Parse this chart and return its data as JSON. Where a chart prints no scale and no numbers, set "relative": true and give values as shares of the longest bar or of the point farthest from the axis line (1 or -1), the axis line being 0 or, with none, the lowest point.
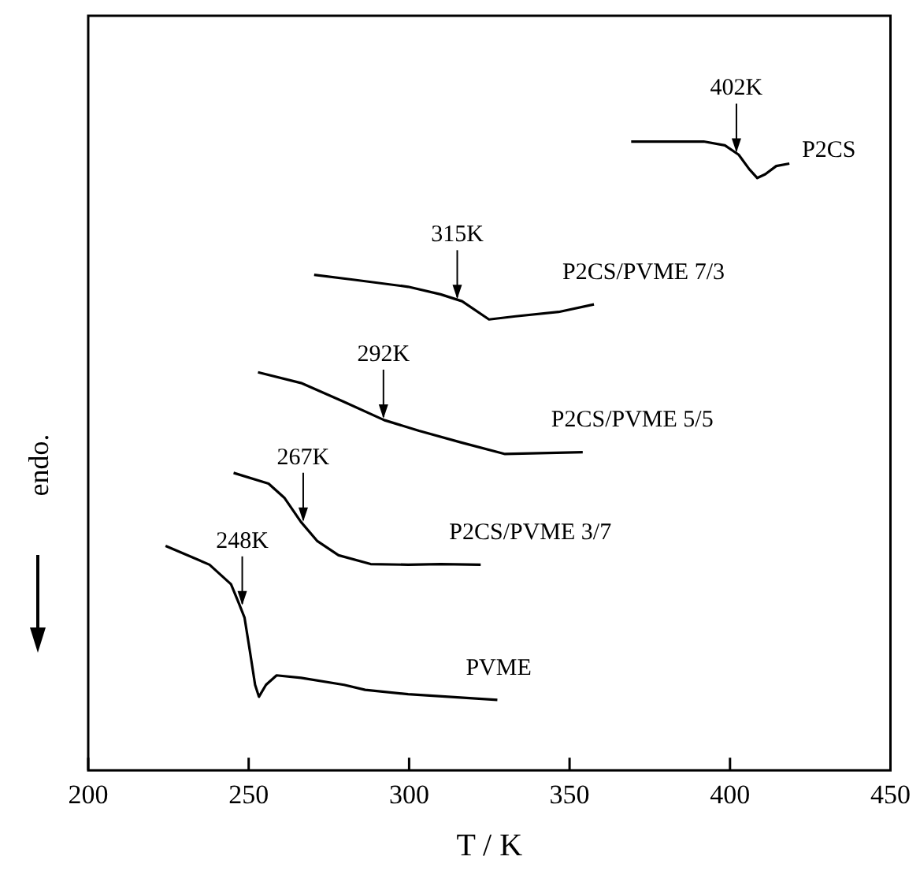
{
  "chart_data": {
    "type": "line",
    "relative": true,
    "xlabel": "T / K",
    "ylabel": "endo.",
    "xlim": [
      200,
      450
    ],
    "xticks": [
      200,
      250,
      300,
      350,
      400,
      450
    ],
    "grid": false,
    "legend": false,
    "series": [
      {
        "name": "P2CS",
        "color": "#000000",
        "x": [
          369.2,
          391.8,
          398.4,
          402.7,
          406.0,
          408.5,
          411.0,
          414.4,
          418.5
        ],
        "values": [
          1.0,
          1.0,
          0.994,
          0.979,
          0.956,
          0.942,
          0.948,
          0.961,
          0.965
        ]
      },
      {
        "name": "P2CS/PVME 7/3",
        "color": "#000000",
        "x": [
          270.4,
          283.0,
          299.7,
          309.8,
          316.5,
          324.9,
          333.2,
          346.6,
          357.6
        ],
        "values": [
          0.788,
          0.78,
          0.769,
          0.757,
          0.746,
          0.717,
          0.722,
          0.729,
          0.741
        ]
      },
      {
        "name": "P2CS/PVME 5/5",
        "color": "#000000",
        "x": [
          252.9,
          266.3,
          279.7,
          292.2,
          303.1,
          316.5,
          329.9,
          354.1
        ],
        "values": [
          0.633,
          0.616,
          0.586,
          0.557,
          0.54,
          0.521,
          0.503,
          0.506
        ]
      },
      {
        "name": "P2CS/PVME 3/7",
        "color": "#000000",
        "x": [
          245.3,
          256.2,
          261.2,
          266.3,
          271.3,
          278.0,
          288.0,
          299.7,
          309.8,
          322.3
        ],
        "values": [
          0.473,
          0.456,
          0.433,
          0.395,
          0.365,
          0.342,
          0.328,
          0.327,
          0.328,
          0.327
        ]
      },
      {
        "name": "PVME",
        "color": "#000000",
        "x": [
          224.1,
          237.8,
          244.5,
          247.0,
          248.7,
          250.4,
          252.0,
          253.2,
          255.4,
          258.7,
          266.3,
          279.7,
          286.3,
          299.7,
          327.5
        ],
        "values": [
          0.357,
          0.327,
          0.296,
          0.265,
          0.243,
          0.189,
          0.136,
          0.117,
          0.136,
          0.151,
          0.147,
          0.136,
          0.128,
          0.121,
          0.112
        ]
      }
    ],
    "annotations": [
      {
        "text": "402K",
        "x": 402,
        "y": 0.98
      },
      {
        "text": "315K",
        "x": 315,
        "y": 0.747
      },
      {
        "text": "292K",
        "x": 292,
        "y": 0.557
      },
      {
        "text": "267K",
        "x": 267,
        "y": 0.393
      },
      {
        "text": "248K",
        "x": 248,
        "y": 0.26
      }
    ]
  }
}
